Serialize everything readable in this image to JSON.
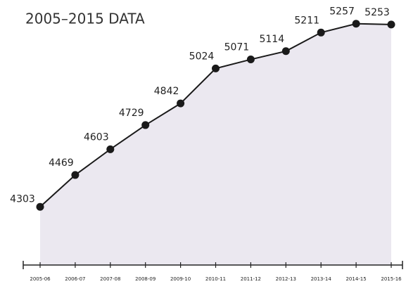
{
  "chart_data": {
    "type": "line",
    "title": "2005–2015 DATA",
    "categories": [
      "2005-06",
      "2006-07",
      "2007-08",
      "2008-09",
      "2009-10",
      "2010-11",
      "2011-12",
      "2012-13",
      "2013-14",
      "2014-15",
      "2015-16"
    ],
    "values": [
      4303,
      4469,
      4603,
      4729,
      4842,
      5024,
      5071,
      5114,
      5211,
      5257,
      5253
    ],
    "color": "#1a1a1a",
    "area_color": "#ebe8f0",
    "ylim": [
      4000,
      5300
    ]
  }
}
